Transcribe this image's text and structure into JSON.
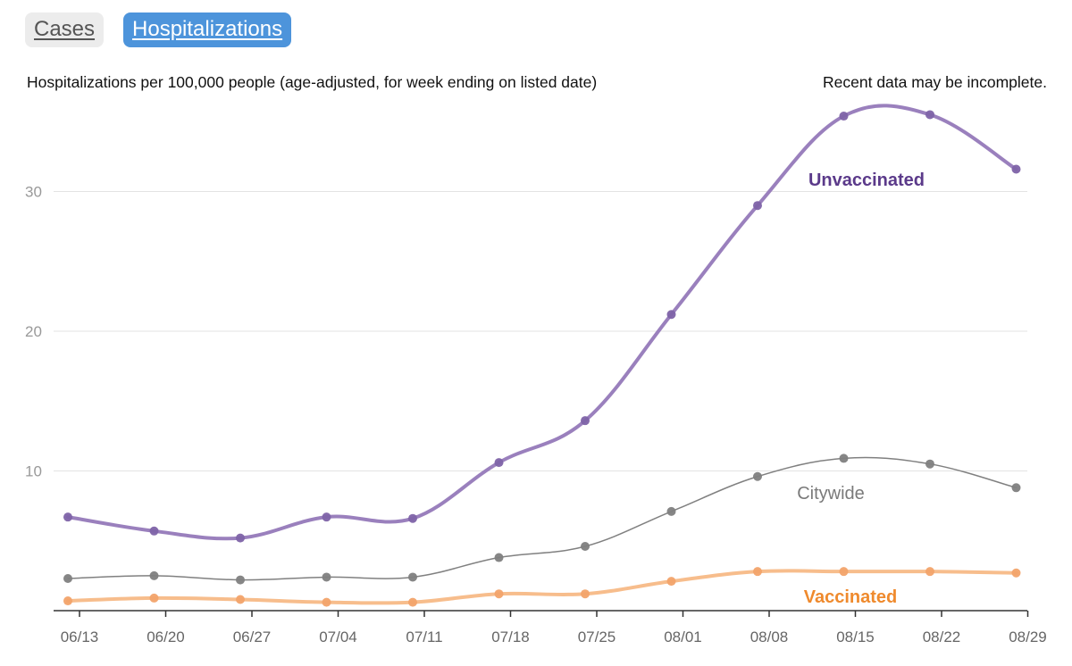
{
  "tabs": [
    {
      "label": "Cases",
      "active": false
    },
    {
      "label": "Hospitalizations",
      "active": true
    }
  ],
  "subtitle": "Hospitalizations per 100,000 people (age-adjusted, for week ending on listed date)",
  "note": "Recent data may be incomplete.",
  "colors": {
    "unvaccinated": "#9a80bd",
    "unvaccinated_dot": "#7e63a8",
    "unvaccinated_label": "#5b3a8a",
    "citywide": "#808080",
    "citywide_label": "#7a7a7a",
    "vaccinated": "#f7bd8c",
    "vaccinated_dot": "#f2a36a",
    "vaccinated_label": "#ef8a2d",
    "tab_active_bg": "#4d94db",
    "tab_inactive_bg": "#ececec"
  },
  "chart_data": {
    "type": "line",
    "categories": [
      "06/13",
      "06/20",
      "06/27",
      "07/04",
      "07/11",
      "07/18",
      "07/25",
      "08/01",
      "08/08",
      "08/15",
      "08/22",
      "08/29"
    ],
    "x_ticks": [
      "06/13",
      "06/20",
      "06/27",
      "07/04",
      "07/11",
      "07/18",
      "07/25",
      "08/01",
      "08/08",
      "08/15",
      "08/22",
      "08/29"
    ],
    "y_ticks": [
      10,
      20,
      30
    ],
    "ylim": [
      0,
      37
    ],
    "grid": true,
    "series": [
      {
        "name": "Unvaccinated",
        "values": [
          6.7,
          5.7,
          5.2,
          6.7,
          6.6,
          10.6,
          13.6,
          21.2,
          29.0,
          35.4,
          35.5,
          31.6
        ]
      },
      {
        "name": "Citywide",
        "values": [
          2.3,
          2.5,
          2.2,
          2.4,
          2.4,
          3.8,
          4.6,
          7.1,
          9.6,
          10.9,
          10.5,
          8.8
        ]
      },
      {
        "name": "Vaccinated",
        "values": [
          0.7,
          0.9,
          0.8,
          0.6,
          0.6,
          1.2,
          1.2,
          2.1,
          2.8,
          2.8,
          2.8,
          2.7
        ]
      }
    ]
  }
}
